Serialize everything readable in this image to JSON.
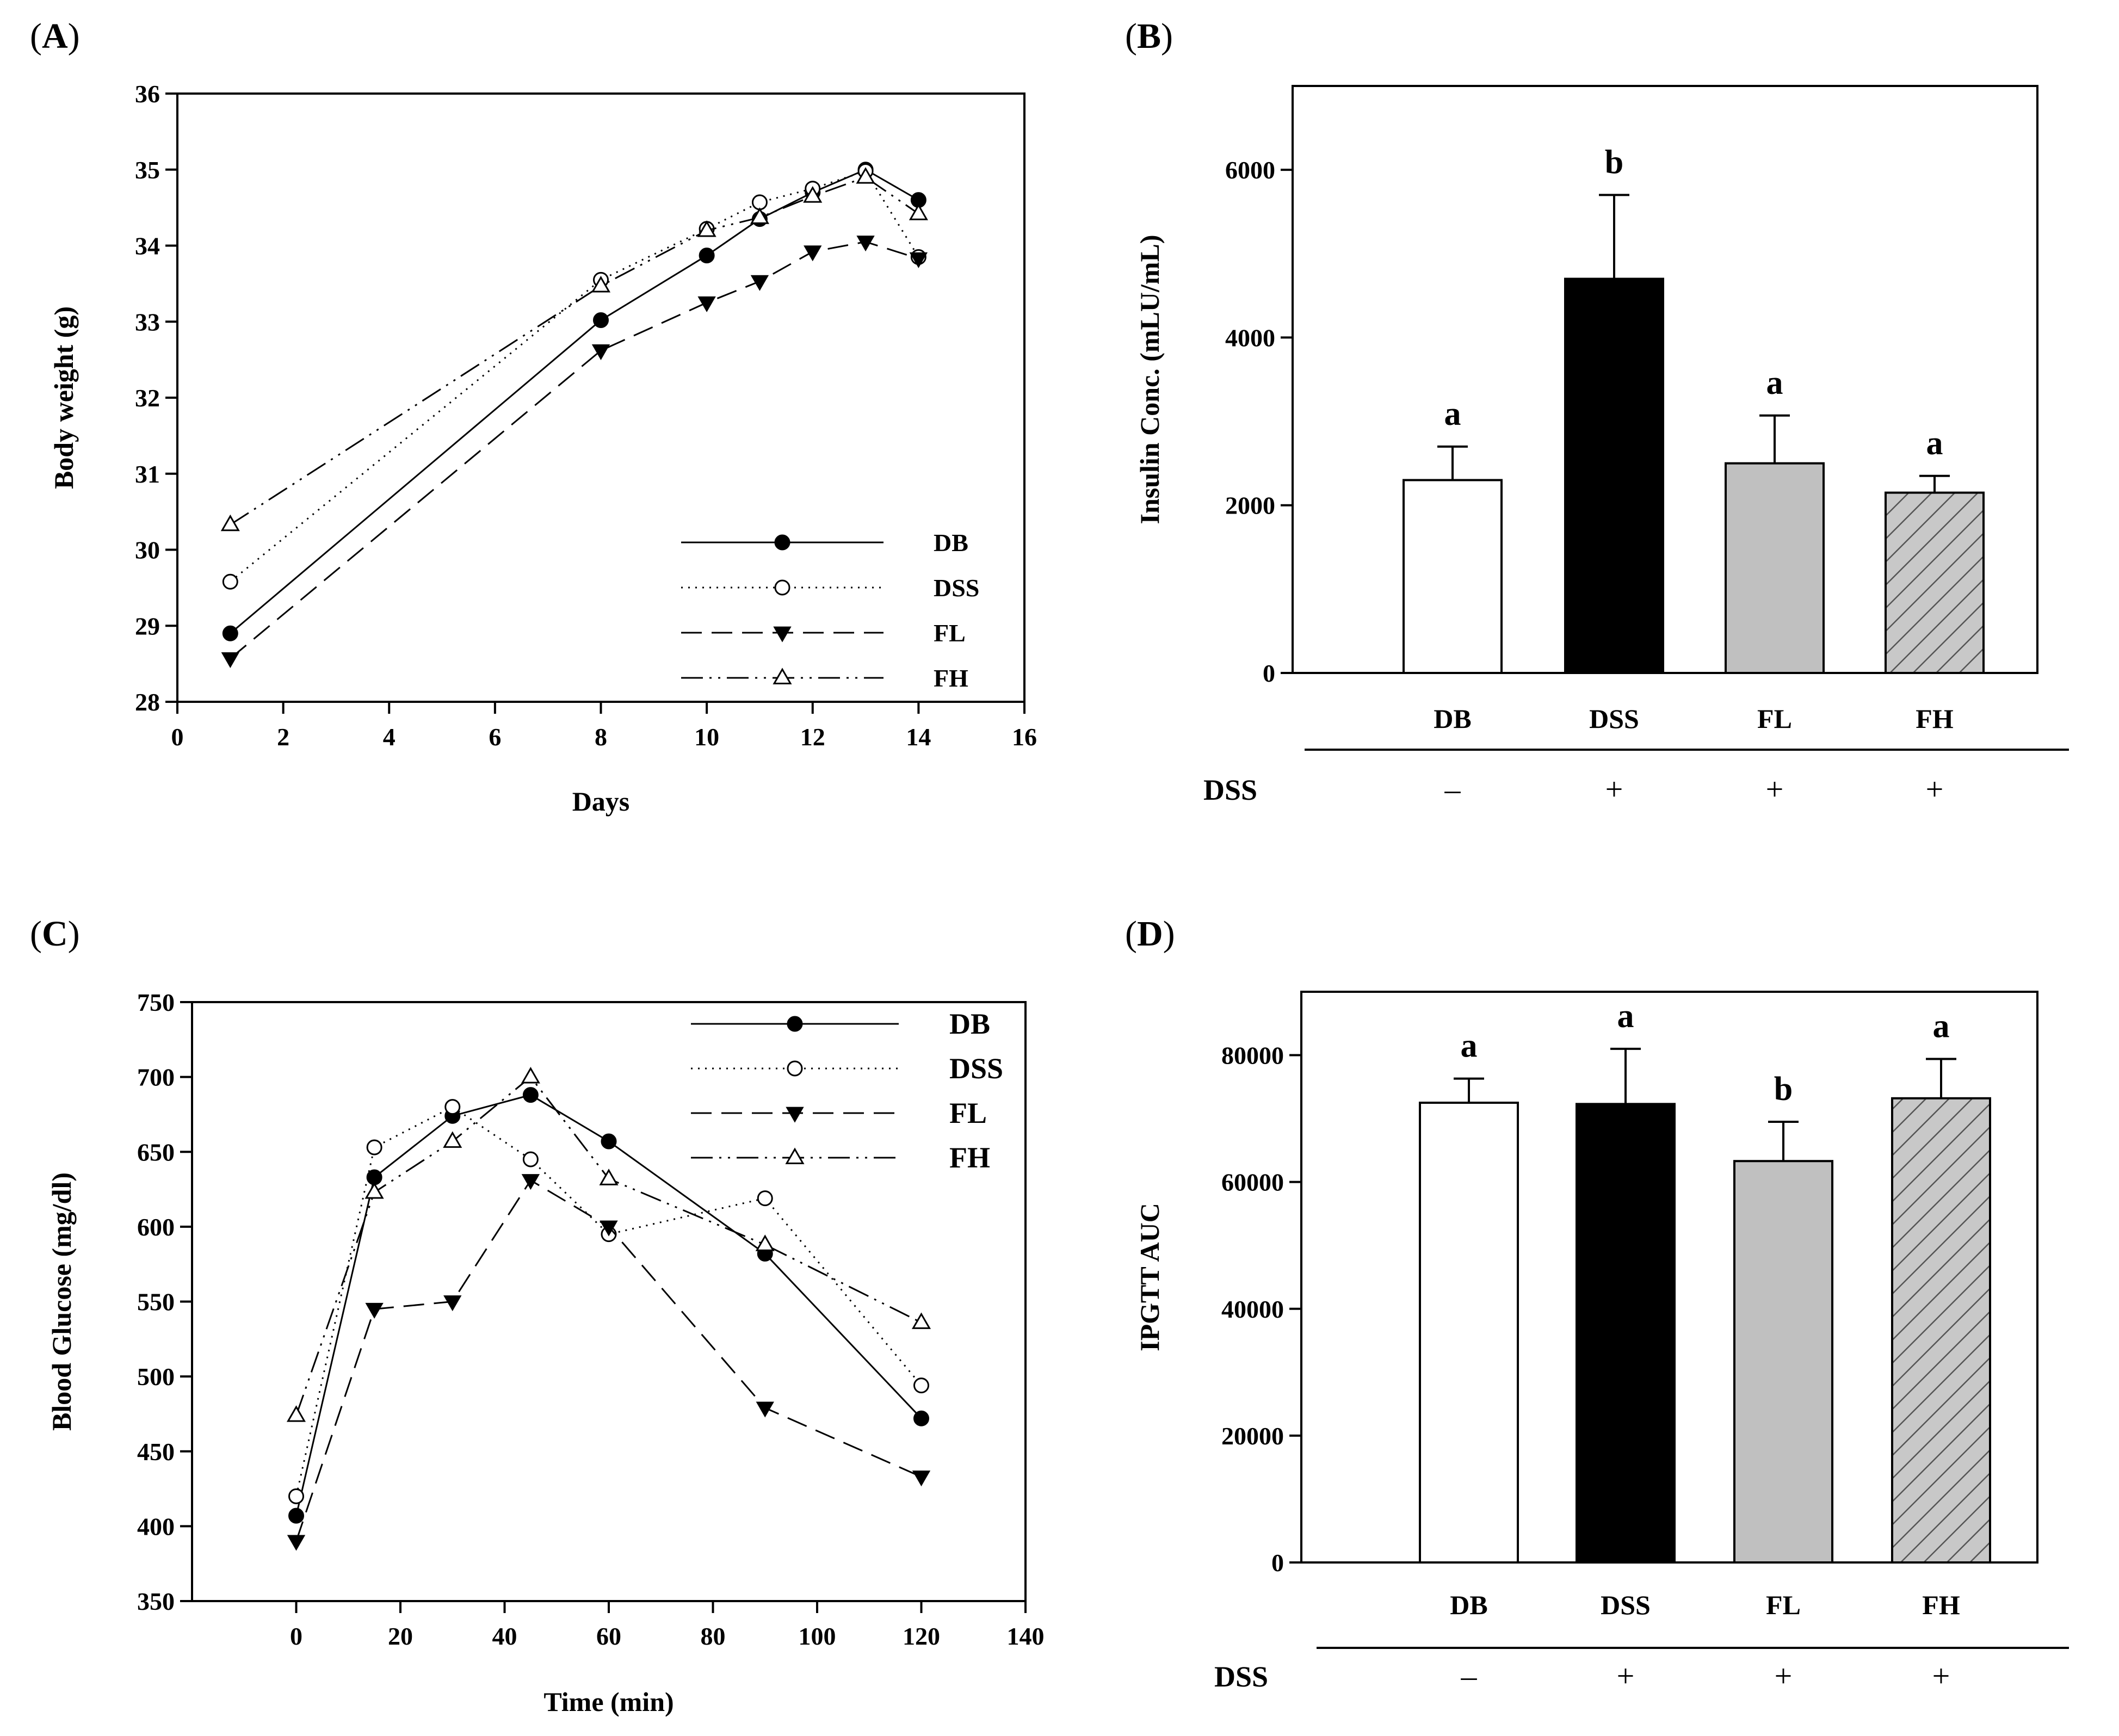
{
  "panels": {
    "A": {
      "label": "A"
    },
    "B": {
      "label": "B"
    },
    "C": {
      "label": "C"
    },
    "D": {
      "label": "D"
    }
  },
  "chart_data": [
    {
      "panel": "A",
      "type": "line",
      "xlabel": "Days",
      "ylabel": "Body weight (g)",
      "xlim": [
        0,
        16
      ],
      "ylim": [
        28,
        36
      ],
      "xticks": [
        0,
        2,
        4,
        6,
        8,
        10,
        12,
        14,
        16
      ],
      "yticks": [
        28,
        29,
        30,
        31,
        32,
        33,
        34,
        35,
        36
      ],
      "legend_position": "lower-right",
      "series": [
        {
          "name": "DB",
          "marker": "filled-circle",
          "dash": "solid",
          "x": [
            1,
            8,
            10,
            11,
            12,
            13,
            14
          ],
          "y": [
            28.9,
            33.02,
            33.87,
            34.35,
            34.7,
            35.0,
            34.6
          ]
        },
        {
          "name": "DSS",
          "marker": "open-circle",
          "dash": "dot",
          "x": [
            1,
            8,
            10,
            11,
            12,
            13,
            14
          ],
          "y": [
            29.58,
            33.55,
            34.22,
            34.57,
            34.75,
            34.98,
            33.85
          ]
        },
        {
          "name": "FL",
          "marker": "filled-triangle-down",
          "dash": "dash",
          "x": [
            1,
            8,
            10,
            11,
            12,
            13,
            14
          ],
          "y": [
            28.57,
            32.62,
            33.25,
            33.53,
            33.92,
            34.05,
            33.83
          ]
        },
        {
          "name": "FH",
          "marker": "open-triangle-up",
          "dash": "dashdotdot",
          "x": [
            1,
            8,
            10,
            11,
            12,
            13,
            14
          ],
          "y": [
            30.33,
            33.47,
            34.2,
            34.37,
            34.65,
            34.9,
            34.42
          ]
        }
      ]
    },
    {
      "panel": "B",
      "type": "bar",
      "ylabel": "Insulin Conc. (mLU/mL)",
      "ylim": [
        0,
        7000
      ],
      "yticks": [
        0,
        2000,
        4000,
        6000
      ],
      "categories": [
        "DB",
        "DSS",
        "FL",
        "FH"
      ],
      "values": [
        2300,
        4700,
        2500,
        2150
      ],
      "errors": [
        400,
        1000,
        570,
        200
      ],
      "letters": [
        "a",
        "b",
        "a",
        "a"
      ],
      "fills": [
        "#ffffff",
        "#000000",
        "#c0c0c0",
        "hatch"
      ],
      "row_label": "DSS",
      "dss_signs": [
        "–",
        "+",
        "+",
        "+"
      ]
    },
    {
      "panel": "C",
      "type": "line",
      "xlabel": "Time (min)",
      "ylabel": "Blood Glucose (mg/dl)",
      "xlim": [
        -20,
        140
      ],
      "ylim": [
        350,
        750
      ],
      "xticks": [
        0,
        20,
        40,
        60,
        80,
        100,
        120,
        140
      ],
      "yticks": [
        350,
        400,
        450,
        500,
        550,
        600,
        650,
        700,
        750
      ],
      "legend_position": "top-right",
      "series": [
        {
          "name": "DB",
          "marker": "filled-circle",
          "dash": "solid",
          "x": [
            0,
            15,
            30,
            45,
            60,
            90,
            120
          ],
          "y": [
            407,
            633,
            674,
            688,
            657,
            582,
            472
          ]
        },
        {
          "name": "DSS",
          "marker": "open-circle",
          "dash": "dot",
          "x": [
            0,
            15,
            30,
            45,
            60,
            90,
            120
          ],
          "y": [
            420,
            653,
            680,
            645,
            595,
            619,
            494
          ]
        },
        {
          "name": "FL",
          "marker": "filled-triangle-down",
          "dash": "dash",
          "x": [
            0,
            15,
            30,
            45,
            60,
            90,
            120
          ],
          "y": [
            390,
            545,
            550,
            631,
            600,
            479,
            433
          ]
        },
        {
          "name": "FH",
          "marker": "open-triangle-up",
          "dash": "dashdotdot",
          "x": [
            0,
            15,
            30,
            45,
            60,
            90,
            120
          ],
          "y": [
            474,
            623,
            657,
            700,
            632,
            588,
            536
          ]
        }
      ]
    },
    {
      "panel": "D",
      "type": "bar",
      "ylabel": "IPGTT AUC",
      "ylim": [
        0,
        90000
      ],
      "yticks": [
        0,
        20000,
        40000,
        60000,
        80000
      ],
      "categories": [
        "DB",
        "DSS",
        "FL",
        "FH"
      ],
      "values": [
        72500,
        72300,
        63300,
        73200
      ],
      "errors": [
        3800,
        8700,
        6200,
        6200
      ],
      "letters": [
        "a",
        "a",
        "b",
        "a"
      ],
      "fills": [
        "#ffffff",
        "#000000",
        "#c0c0c0",
        "hatch"
      ],
      "row_label": "DSS",
      "dss_signs": [
        "–",
        "+",
        "+",
        "+"
      ]
    }
  ]
}
